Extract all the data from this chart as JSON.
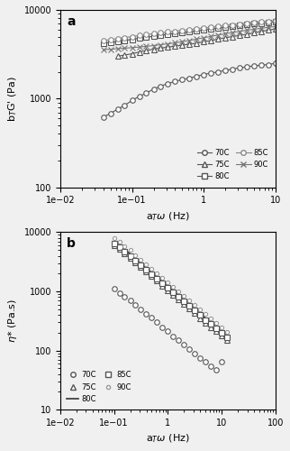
{
  "panel_a": {
    "ylabel": "b$_T$G' (Pa)",
    "xlabel": "a$_T$$\\omega$ (Hz)",
    "xlim": [
      0.01,
      10
    ],
    "ylim": [
      100,
      10000
    ],
    "label": "a",
    "series": {
      "70C": {
        "x": [
          0.04,
          0.05,
          0.063,
          0.079,
          0.1,
          0.126,
          0.158,
          0.2,
          0.25,
          0.316,
          0.398,
          0.5,
          0.631,
          0.794,
          1.0,
          1.26,
          1.58,
          2.0,
          2.51,
          3.16,
          3.98,
          5.01,
          6.31,
          7.94,
          10.0
        ],
        "y": [
          620,
          680,
          760,
          840,
          950,
          1060,
          1150,
          1280,
          1380,
          1480,
          1560,
          1640,
          1700,
          1780,
          1870,
          1940,
          2000,
          2080,
          2150,
          2220,
          2280,
          2340,
          2380,
          2420,
          2500
        ],
        "marker": "o",
        "linestyle": "-",
        "markersize": 4,
        "markerfacecolor": "white",
        "color": "#555555"
      },
      "75C": {
        "x": [
          0.063,
          0.079,
          0.1,
          0.126,
          0.158,
          0.2,
          0.25,
          0.316,
          0.398,
          0.5,
          0.631,
          0.794,
          1.0,
          1.26,
          1.58,
          2.0,
          2.51,
          3.16,
          3.98,
          5.01,
          6.31,
          7.94,
          10.0
        ],
        "y": [
          3000,
          3100,
          3200,
          3350,
          3480,
          3600,
          3700,
          3800,
          3900,
          4000,
          4100,
          4200,
          4380,
          4500,
          4680,
          4850,
          5000,
          5150,
          5300,
          5500,
          5700,
          5900,
          6100
        ],
        "marker": "^",
        "linestyle": "-",
        "markersize": 4,
        "markerfacecolor": "white",
        "color": "#555555"
      },
      "80C": {
        "x": [
          0.04,
          0.05,
          0.063,
          0.079,
          0.1,
          0.126,
          0.158,
          0.2,
          0.25,
          0.316,
          0.398,
          0.5,
          0.631,
          0.794,
          1.0,
          1.26,
          1.58,
          2.0,
          2.51,
          3.16,
          3.98,
          5.01,
          6.31,
          7.94,
          10.0
        ],
        "y": [
          4200,
          4300,
          4400,
          4520,
          4650,
          4780,
          4900,
          5050,
          5180,
          5300,
          5430,
          5550,
          5680,
          5800,
          5950,
          6080,
          6220,
          6380,
          6520,
          6650,
          6800,
          6950,
          7100,
          7250,
          7350
        ],
        "marker": "s",
        "linestyle": "-",
        "markersize": 4,
        "markerfacecolor": "white",
        "color": "#555555"
      },
      "85C": {
        "x": [
          0.04,
          0.05,
          0.063,
          0.079,
          0.1,
          0.126,
          0.158,
          0.2,
          0.25,
          0.316,
          0.398,
          0.5,
          0.631,
          0.794,
          1.0,
          1.26,
          1.58,
          2.0,
          2.51,
          3.16,
          3.98,
          5.01,
          6.31,
          7.94,
          10.0
        ],
        "y": [
          4500,
          4620,
          4750,
          4880,
          5000,
          5130,
          5260,
          5400,
          5520,
          5640,
          5760,
          5880,
          5990,
          6100,
          6240,
          6370,
          6500,
          6650,
          6780,
          6900,
          7050,
          7180,
          7320,
          7450,
          7550
        ],
        "marker": "o",
        "linestyle": "-",
        "markersize": 4,
        "markerfacecolor": "white",
        "color": "#888888"
      },
      "90C": {
        "x": [
          0.04,
          0.05,
          0.063,
          0.079,
          0.1,
          0.126,
          0.158,
          0.2,
          0.25,
          0.316,
          0.398,
          0.5,
          0.631,
          0.794,
          1.0,
          1.26,
          1.58,
          2.0,
          2.51,
          3.16,
          3.98,
          5.01,
          6.31,
          7.94,
          10.0
        ],
        "y": [
          3550,
          3600,
          3650,
          3700,
          3750,
          3810,
          3880,
          3960,
          4050,
          4140,
          4250,
          4380,
          4520,
          4680,
          4850,
          5020,
          5200,
          5380,
          5550,
          5720,
          5900,
          6050,
          6200,
          6350,
          6480
        ],
        "marker": "x",
        "linestyle": "-",
        "markersize": 4,
        "markerfacecolor": "white",
        "color": "#777777"
      }
    }
  },
  "panel_b": {
    "ylabel": "$\\eta$* (Pa.s)",
    "xlabel": "a$_T$$\\omega$ (Hz)",
    "xlim": [
      0.01,
      100
    ],
    "ylim": [
      10,
      10000
    ],
    "label": "b",
    "series": {
      "70C": {
        "x": [
          0.1,
          0.126,
          0.158,
          0.2,
          0.25,
          0.316,
          0.398,
          0.5,
          0.631,
          0.794,
          1.0,
          1.26,
          1.58,
          2.0,
          2.51,
          3.16,
          3.98,
          5.01,
          6.31,
          7.94,
          10.0
        ],
        "y": [
          1100,
          950,
          820,
          700,
          600,
          500,
          420,
          360,
          300,
          250,
          210,
          175,
          148,
          124,
          104,
          88,
          74,
          64,
          55,
          48,
          65
        ],
        "marker": "o",
        "linestyle": "none",
        "markersize": 4,
        "markerfacecolor": "white",
        "color": "#555555"
      },
      "75C": {
        "x": [
          0.1,
          0.126,
          0.158,
          0.2,
          0.25,
          0.316,
          0.398,
          0.5,
          0.631,
          0.794,
          1.0,
          1.26,
          1.58,
          2.0,
          2.51,
          3.16,
          3.98,
          5.01,
          6.31,
          7.94,
          10.0,
          12.6
        ],
        "y": [
          6000,
          5200,
          4400,
          3700,
          3100,
          2600,
          2150,
          1800,
          1500,
          1250,
          1040,
          870,
          730,
          610,
          510,
          425,
          355,
          298,
          250,
          210,
          178,
          150
        ],
        "marker": "^",
        "linestyle": "none",
        "markersize": 4,
        "markerfacecolor": "white",
        "color": "#555555"
      },
      "80C": {
        "x": [
          0.1,
          0.126,
          0.158,
          0.2,
          0.25,
          0.316,
          0.398,
          0.5,
          0.631,
          0.794,
          1.0,
          1.26,
          1.58,
          2.0,
          2.51,
          3.16,
          3.98,
          5.01,
          6.31,
          7.94,
          10.0,
          12.6
        ],
        "y": [
          7000,
          6000,
          5100,
          4300,
          3600,
          3000,
          2500,
          2100,
          1750,
          1460,
          1220,
          1020,
          854,
          714,
          598,
          500,
          419,
          351,
          295,
          248,
          208,
          175
        ],
        "marker": "none",
        "linestyle": "-",
        "markersize": 4,
        "markerfacecolor": "white",
        "color": "#333333"
      },
      "85C": {
        "x": [
          0.1,
          0.126,
          0.158,
          0.2,
          0.25,
          0.316,
          0.398,
          0.5,
          0.631,
          0.794,
          1.0,
          1.26,
          1.58,
          2.0,
          2.51,
          3.16,
          3.98,
          5.01,
          6.31,
          7.94,
          10.0,
          12.6
        ],
        "y": [
          6500,
          5600,
          4750,
          4000,
          3350,
          2800,
          2340,
          1960,
          1640,
          1370,
          1145,
          958,
          802,
          672,
          563,
          471,
          395,
          331,
          278,
          234,
          197,
          166
        ],
        "marker": "s",
        "linestyle": "none",
        "markersize": 4,
        "markerfacecolor": "white",
        "color": "#555555"
      },
      "90C": {
        "x": [
          0.1,
          0.126,
          0.158,
          0.2,
          0.25,
          0.316,
          0.398,
          0.5,
          0.631,
          0.794,
          1.0,
          1.26,
          1.58,
          2.0,
          2.51,
          3.16,
          3.98,
          5.01,
          6.31,
          7.94,
          10.0,
          12.6
        ],
        "y": [
          8000,
          6900,
          5850,
          4950,
          4150,
          3480,
          2900,
          2430,
          2030,
          1700,
          1420,
          1190,
          996,
          834,
          699,
          586,
          491,
          412,
          346,
          291,
          245,
          206
        ],
        "marker": "o",
        "linestyle": "none",
        "markersize": 3,
        "markerfacecolor": "white",
        "color": "#999999"
      }
    }
  },
  "background_color": "#f0f0f0"
}
